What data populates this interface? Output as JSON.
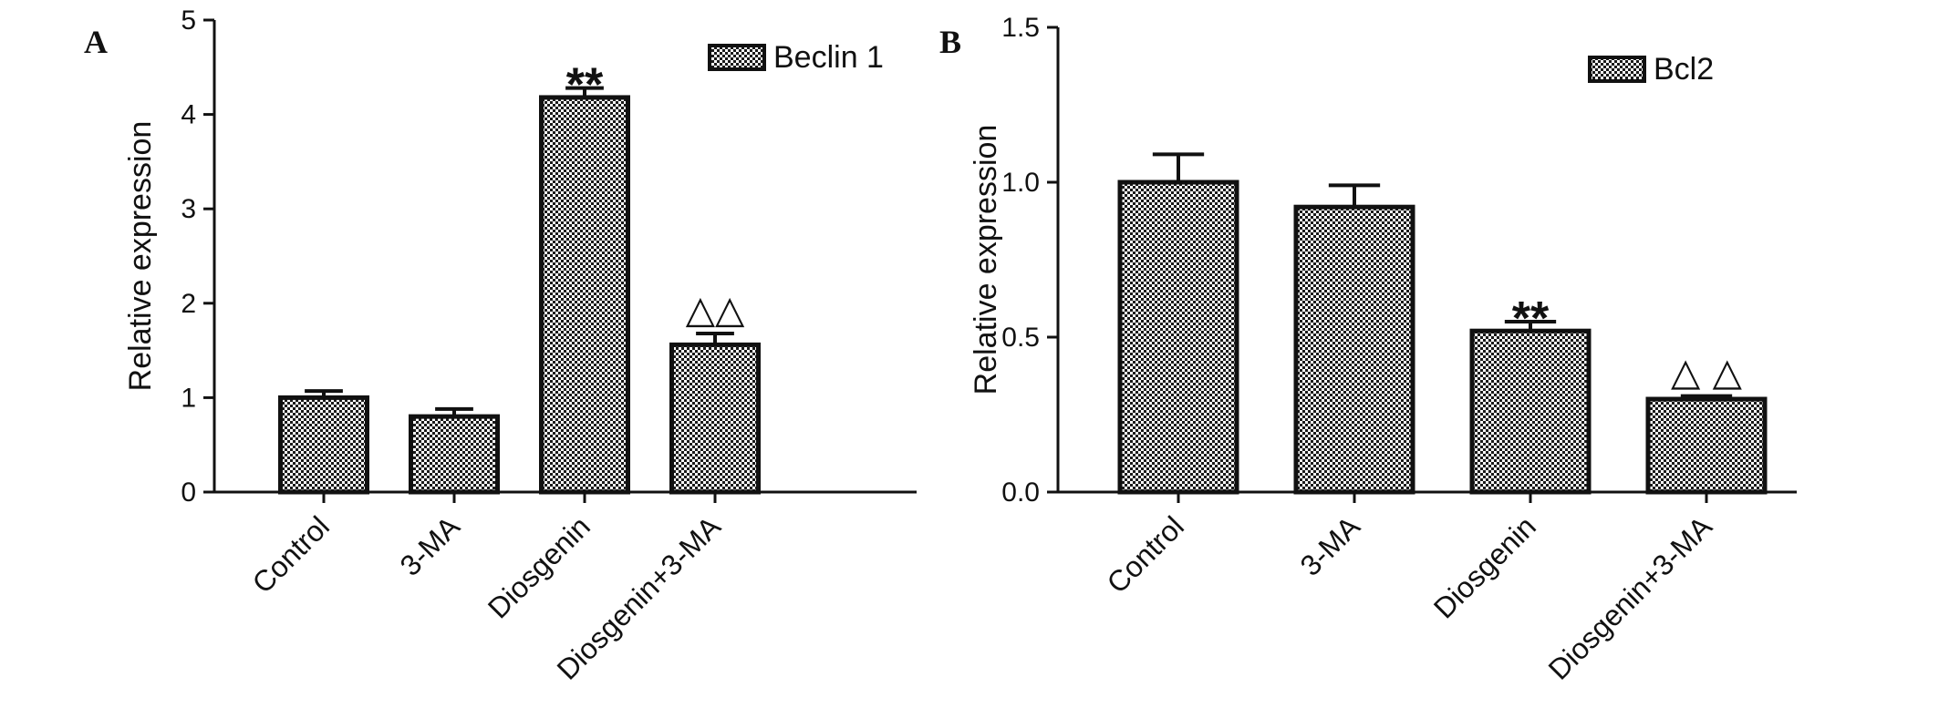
{
  "chart_data": [
    {
      "type": "bar",
      "panel_label": "A",
      "categories": [
        "Control",
        "3-MA",
        "Diosgenin",
        "Diosgenin+3-MA"
      ],
      "series": [
        {
          "name": "Beclin 1",
          "values": [
            1.0,
            0.8,
            4.18,
            1.56
          ],
          "errors": [
            0.07,
            0.08,
            0.1,
            0.12
          ]
        }
      ],
      "annotations": [
        "",
        "",
        "**",
        "△△"
      ],
      "title": "",
      "xlabel": "",
      "ylabel": "Relative expression",
      "ylim": [
        0,
        5
      ],
      "yticks": [
        0,
        1,
        2,
        3,
        4,
        5
      ],
      "ytick_labels": [
        "0",
        "1",
        "2",
        "3",
        "4",
        "5"
      ],
      "legend_position": "top-right",
      "grid": false
    },
    {
      "type": "bar",
      "panel_label": "B",
      "categories": [
        "Control",
        "3-MA",
        "Diosgenin",
        "Diosgenin+3-MA"
      ],
      "series": [
        {
          "name": "Bcl2",
          "values": [
            1.0,
            0.92,
            0.52,
            0.3
          ],
          "errors": [
            0.09,
            0.07,
            0.03,
            0.01
          ]
        }
      ],
      "annotations": [
        "",
        "",
        "**",
        "△ △"
      ],
      "title": "",
      "xlabel": "",
      "ylabel": "Relative expression",
      "ylim": [
        0,
        1.5
      ],
      "yticks": [
        0,
        0.5,
        1.0,
        1.5
      ],
      "ytick_labels": [
        "0.0",
        "0.5",
        "1.0",
        "1.5"
      ],
      "legend_position": "top-right",
      "grid": false
    }
  ]
}
